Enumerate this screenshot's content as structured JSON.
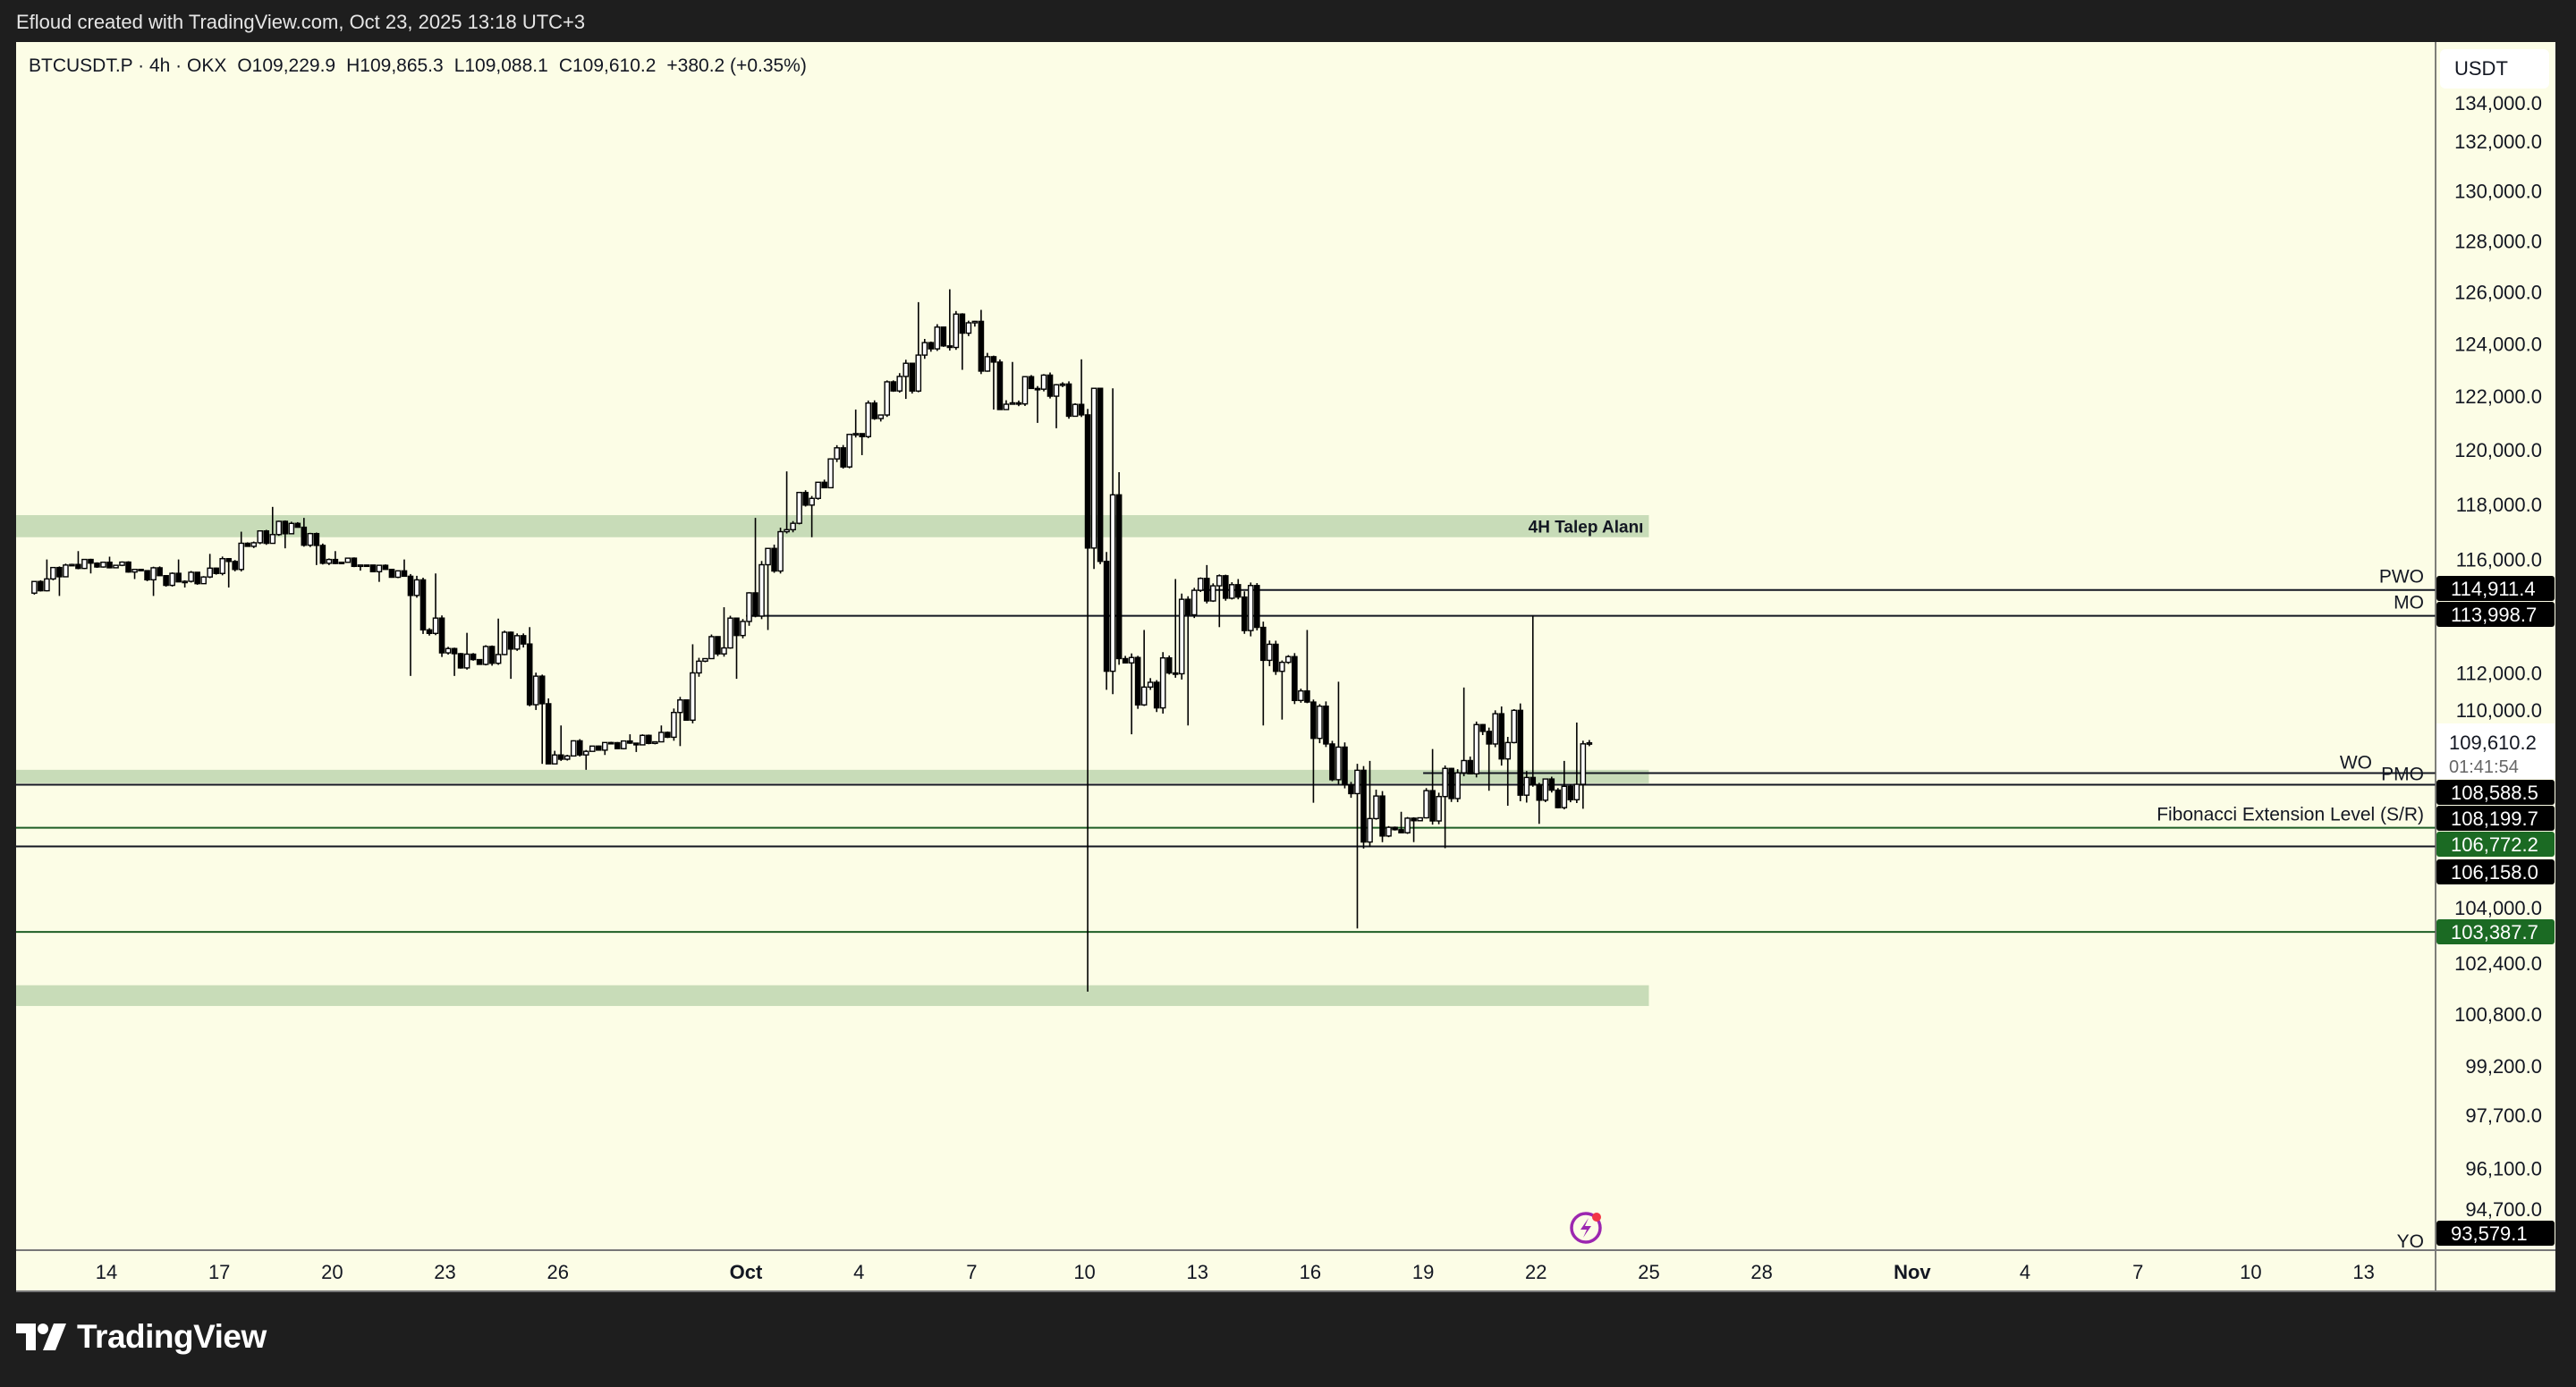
{
  "top_bar": {
    "caption": "Efloud created with TradingView.com, Oct 23, 2025 13:18 UTC+3"
  },
  "legend": {
    "symbol": "BTCUSDT.P · 4h · OKX",
    "open": "O109,229.9",
    "high": "H109,865.3",
    "low": "L109,088.1",
    "close": "C109,610.2",
    "change": "+380.2 (+0.35%)"
  },
  "currency_button": "USDT",
  "footer": {
    "brand": "TradingView"
  },
  "colors": {
    "background": "#fcfde6",
    "zone": "#c8dcb8",
    "line": "#131722",
    "green_line": "#1e5e25",
    "label_black": "#000000",
    "label_green": "#1b6a23",
    "alert_icon": "#9c27b0"
  },
  "chart_data": {
    "type": "candlestick",
    "title": "",
    "scale": "log",
    "interval": "4h",
    "ylim": [
      93500,
      134500
    ],
    "xlim": [
      "2025-09-11",
      "2025-11-16"
    ],
    "grid": false,
    "y_ticks": [
      "134,000.0",
      "132,000.0",
      "130,000.0",
      "128,000.0",
      "126,000.0",
      "124,000.0",
      "122,000.0",
      "120,000.0",
      "118,000.0",
      "116,000.0",
      "112,000.0",
      "110,000.0",
      "104,000.0",
      "102,400.0",
      "100,800.0",
      "99,200.0",
      "97,700.0",
      "96,100.0",
      "94,700.0"
    ],
    "x_ticks": [
      {
        "label": "14",
        "date": "2025-09-14"
      },
      {
        "label": "17",
        "date": "2025-09-17"
      },
      {
        "label": "20",
        "date": "2025-09-20"
      },
      {
        "label": "23",
        "date": "2025-09-23"
      },
      {
        "label": "26",
        "date": "2025-09-26"
      },
      {
        "label": "Oct",
        "date": "2025-10-01",
        "bold": true
      },
      {
        "label": "4",
        "date": "2025-10-04"
      },
      {
        "label": "7",
        "date": "2025-10-07"
      },
      {
        "label": "10",
        "date": "2025-10-10"
      },
      {
        "label": "13",
        "date": "2025-10-13"
      },
      {
        "label": "16",
        "date": "2025-10-16"
      },
      {
        "label": "19",
        "date": "2025-10-19"
      },
      {
        "label": "22",
        "date": "2025-10-22"
      },
      {
        "label": "25",
        "date": "2025-10-25"
      },
      {
        "label": "28",
        "date": "2025-10-28"
      },
      {
        "label": "Nov",
        "date": "2025-11-01",
        "bold": true
      },
      {
        "label": "4",
        "date": "2025-11-04"
      },
      {
        "label": "7",
        "date": "2025-11-07"
      },
      {
        "label": "10",
        "date": "2025-11-10"
      },
      {
        "label": "13",
        "date": "2025-11-13"
      }
    ],
    "daily_ohlc": [
      [
        "2025-09-12",
        114800,
        116000,
        114700,
        115800
      ],
      [
        "2025-09-13",
        115800,
        116300,
        115500,
        115900
      ],
      [
        "2025-09-14",
        115900,
        116100,
        115300,
        115600
      ],
      [
        "2025-09-15",
        115600,
        116000,
        114700,
        115200
      ],
      [
        "2025-09-16",
        115200,
        116200,
        115000,
        115500
      ],
      [
        "2025-09-17",
        115500,
        117000,
        115000,
        116600
      ],
      [
        "2025-09-18",
        116600,
        117900,
        116400,
        117300
      ],
      [
        "2025-09-19",
        117300,
        117500,
        115800,
        116000
      ],
      [
        "2025-09-20",
        116000,
        116300,
        115600,
        115800
      ],
      [
        "2025-09-21",
        115800,
        116000,
        115200,
        115400
      ],
      [
        "2025-09-22",
        115400,
        115500,
        111900,
        112700
      ],
      [
        "2025-09-23",
        112700,
        113400,
        111900,
        112300
      ],
      [
        "2025-09-24",
        112300,
        113900,
        111800,
        113300
      ],
      [
        "2025-09-25",
        113300,
        113600,
        108900,
        109200
      ],
      [
        "2025-09-26",
        109200,
        110200,
        108700,
        109500
      ],
      [
        "2025-09-27",
        109500,
        109900,
        109200,
        109600
      ],
      [
        "2025-09-28",
        109600,
        110200,
        109300,
        109800
      ],
      [
        "2025-09-29",
        109800,
        113000,
        109500,
        112500
      ],
      [
        "2025-09-30",
        112500,
        114300,
        111800,
        113800
      ],
      [
        "2025-10-01",
        113800,
        117500,
        113500,
        117000
      ],
      [
        "2025-10-02",
        117000,
        119200,
        116800,
        118800
      ],
      [
        "2025-10-03",
        118800,
        121500,
        118600,
        120600
      ],
      [
        "2025-10-04",
        120600,
        122600,
        119800,
        122200
      ],
      [
        "2025-10-05",
        122200,
        125600,
        121900,
        123800
      ],
      [
        "2025-10-06",
        123800,
        126100,
        123000,
        124800
      ],
      [
        "2025-10-07",
        124800,
        125300,
        121500,
        121700
      ],
      [
        "2025-10-08",
        121700,
        123300,
        121000,
        122800
      ],
      [
        "2025-10-09",
        122800,
        123400,
        120800,
        121300
      ],
      [
        "2025-10-10",
        121300,
        122300,
        101500,
        112500
      ],
      [
        "2025-10-11",
        112500,
        113500,
        109900,
        110800
      ],
      [
        "2025-10-12",
        110800,
        115300,
        110200,
        114900
      ],
      [
        "2025-10-13",
        114900,
        115800,
        113600,
        115100
      ],
      [
        "2025-10-14",
        115100,
        115300,
        110200,
        113000
      ],
      [
        "2025-10-15",
        113000,
        113500,
        110400,
        111000
      ],
      [
        "2025-10-16",
        111000,
        111700,
        107600,
        108200
      ],
      [
        "2025-10-17",
        108200,
        109000,
        103500,
        106500
      ],
      [
        "2025-10-18",
        106500,
        107300,
        106300,
        107100
      ],
      [
        "2025-10-19",
        107100,
        109400,
        106100,
        108600
      ],
      [
        "2025-10-20",
        108600,
        111500,
        108000,
        110600
      ],
      [
        "2025-10-21",
        110600,
        114000,
        107500,
        108200
      ],
      [
        "2025-10-22",
        108200,
        109000,
        106900,
        107700
      ],
      [
        "2025-10-23",
        107700,
        110300,
        107400,
        109610.2
      ]
    ],
    "zones": [
      {
        "label": "4H Talep Alanı",
        "top": 117600,
        "bottom": 116800,
        "from": "2025-09-11",
        "to": "2025-10-25"
      },
      {
        "label": "",
        "top": 108700,
        "bottom": 108250,
        "from": "2025-09-11",
        "to": "2025-10-25"
      },
      {
        "label": "",
        "top": 101700,
        "bottom": 101050,
        "from": "2025-09-11",
        "to": "2025-10-25"
      }
    ],
    "levels": [
      {
        "name": "PWO",
        "price": 114911.4,
        "price_label": "114,911.4",
        "from": "2025-10-13",
        "color": "black"
      },
      {
        "name": "MO",
        "price": 113998.7,
        "price_label": "113,998.7",
        "from": "2025-10-01",
        "color": "black"
      },
      {
        "name": "WO",
        "price": 108588.5,
        "price_label": "108,588.5",
        "from": "2025-10-19",
        "color": "black"
      },
      {
        "name": "PMO",
        "price": 108199.7,
        "price_label": "108,199.7",
        "from": "2025-09-11",
        "color": "black"
      },
      {
        "name": "Fibonacci Extension Level (S/R)",
        "price": 106772.2,
        "price_label": "106,772.2",
        "from": "2025-09-11",
        "color": "green"
      },
      {
        "name": "",
        "price": 106158.0,
        "price_label": "106,158.0",
        "from": "2025-09-11",
        "color": "black"
      },
      {
        "name": "",
        "price": 103387.7,
        "price_label": "103,387.7",
        "from": "2025-09-11",
        "color": "green"
      },
      {
        "name": "YO",
        "price": 93579.1,
        "price_label": "93,579.1",
        "from": "2025-09-11",
        "color": "black"
      }
    ],
    "last_price": {
      "price": 109610.2,
      "label": "109,610.2",
      "countdown": "01:41:54"
    }
  }
}
